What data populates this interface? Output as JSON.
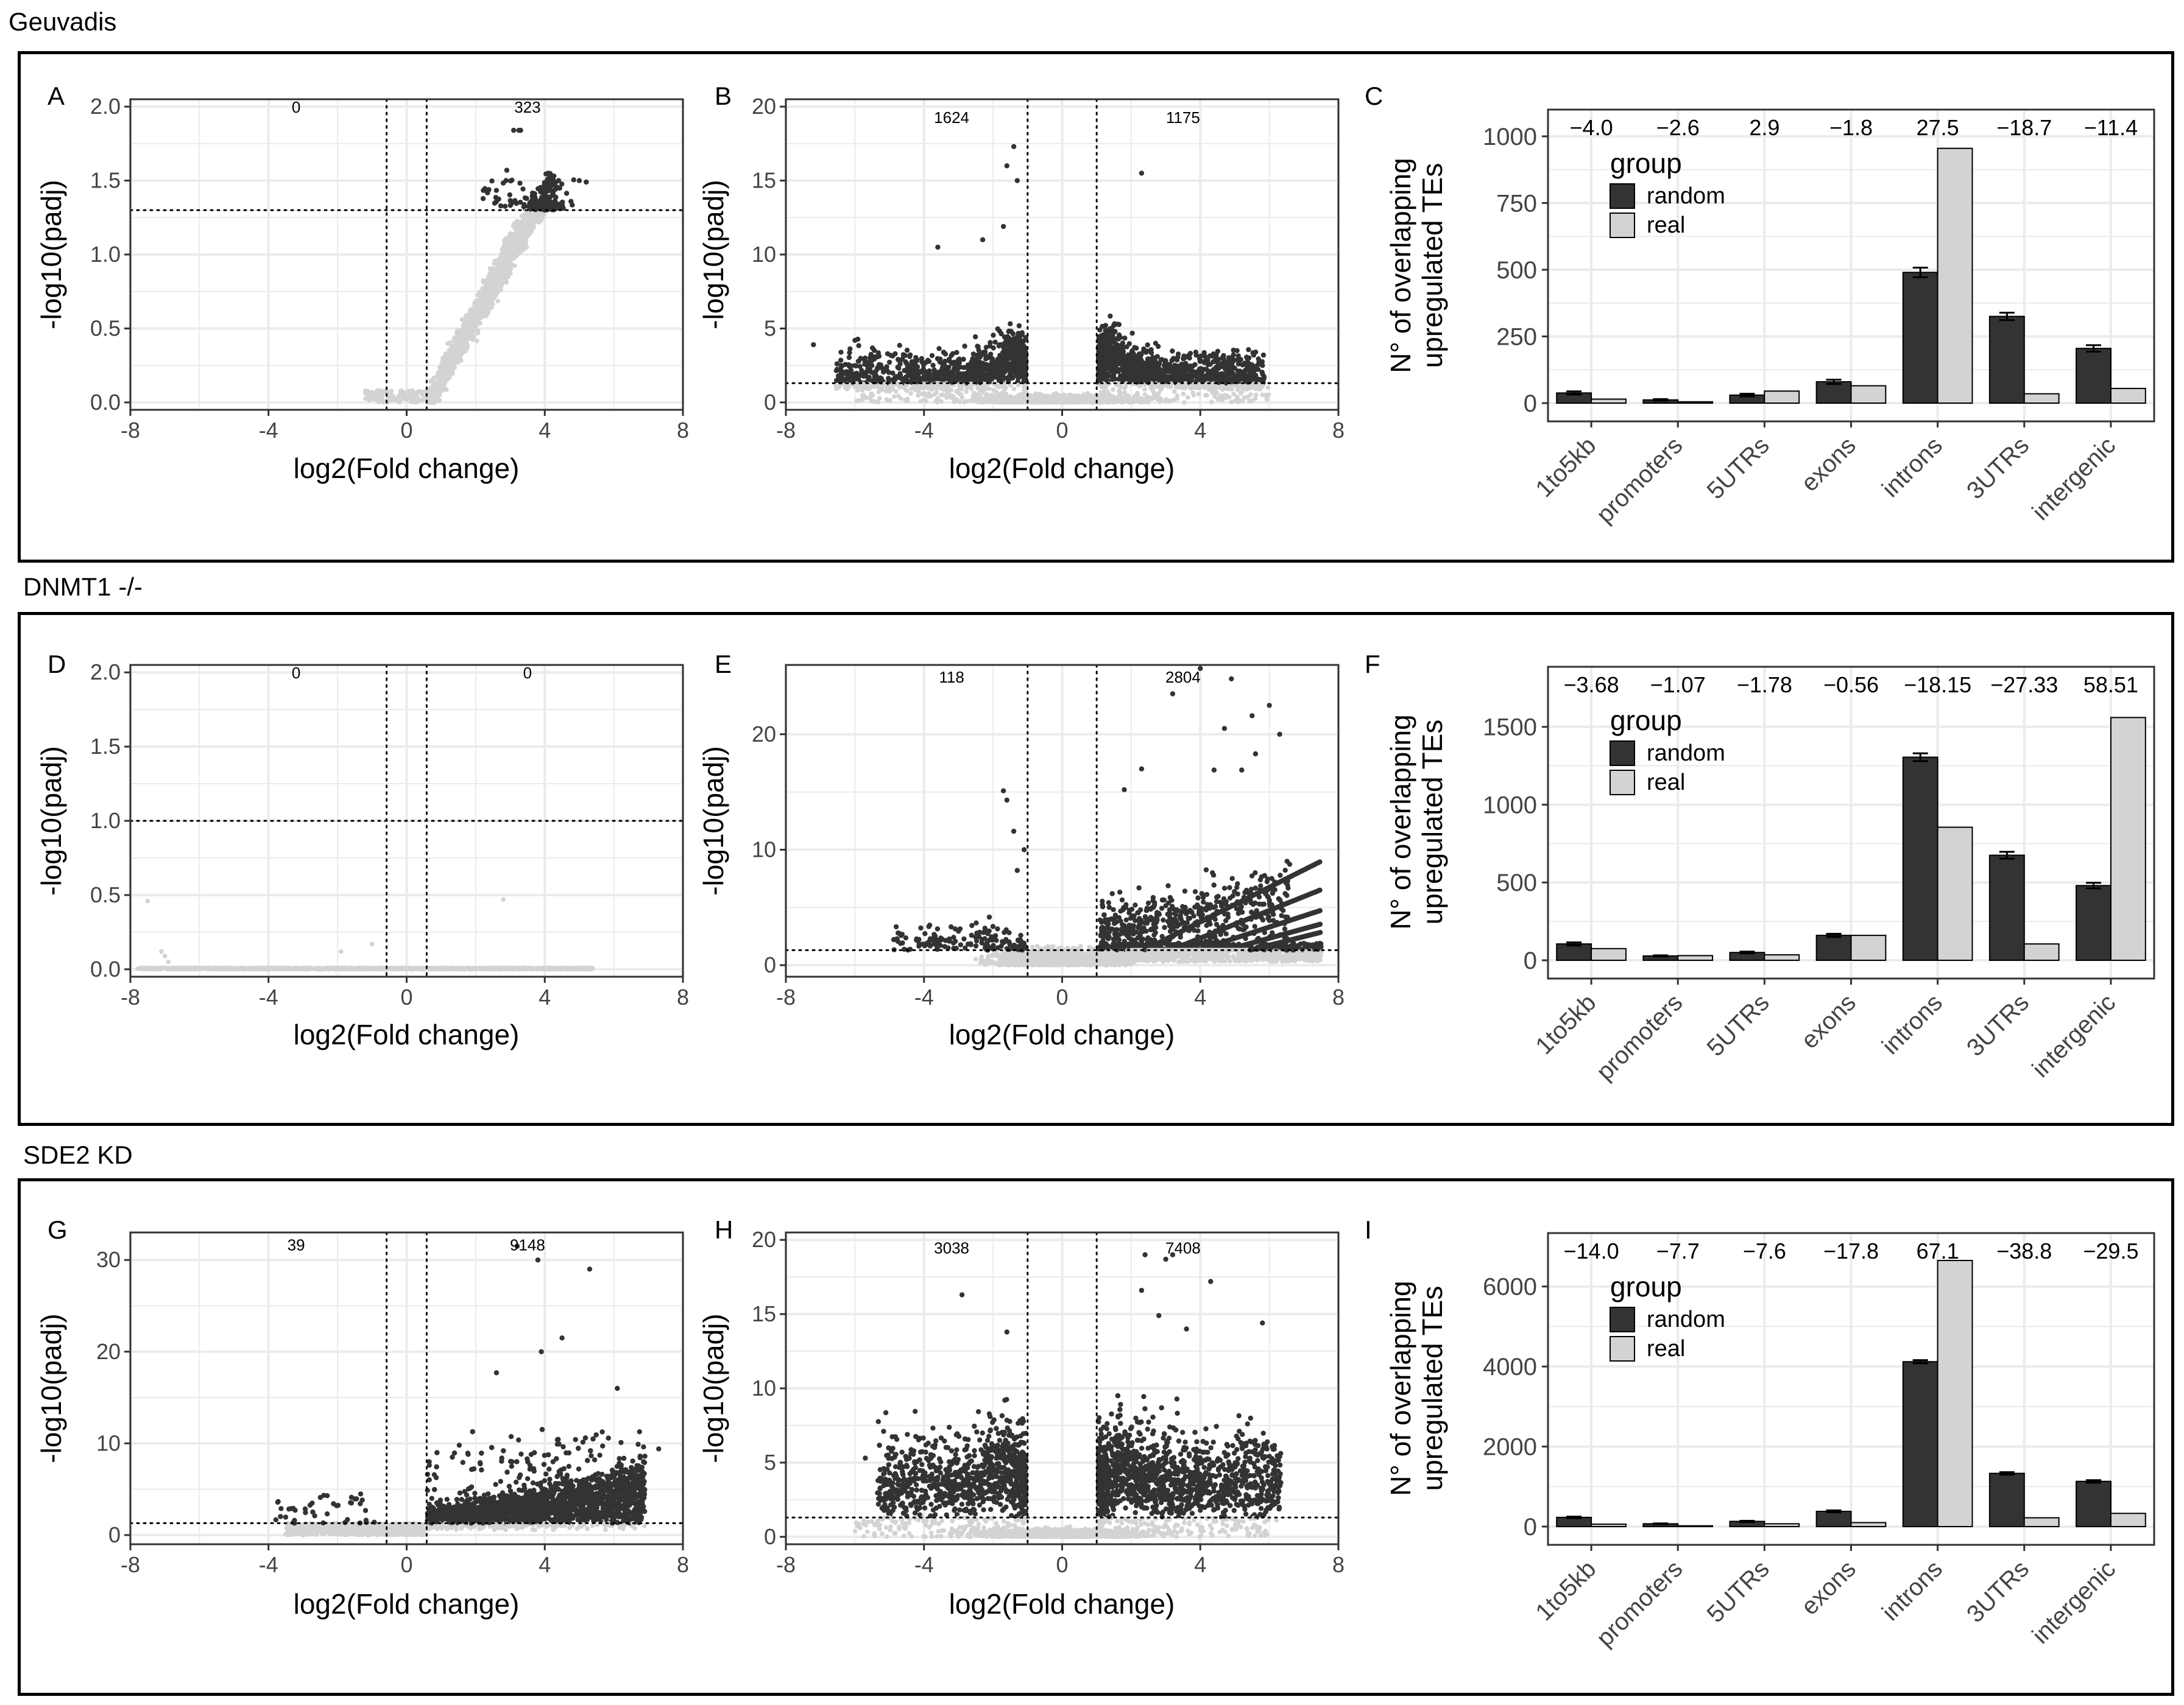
{
  "colors": {
    "dark": "#333333",
    "light": "#d3d3d3",
    "grid": "#ebebeb",
    "frame": "#000000"
  },
  "sections": [
    {
      "title": "Geuvadis"
    },
    {
      "title": "DNMT1 -/-"
    },
    {
      "title": "SDE2 KD"
    }
  ],
  "chart_data": [
    {
      "panel": "A",
      "type": "scatter",
      "xlabel": "log2(Fold change)",
      "ylabel": "-log10(padj)",
      "xlim": [
        -8,
        8
      ],
      "ylim": [
        -0.05,
        2.05
      ],
      "xticks": [
        -8,
        -4,
        0,
        4,
        8
      ],
      "yticks": [
        0,
        0.5,
        1,
        1.5,
        2
      ],
      "ytick_labels": [
        "0.0",
        "0.5",
        "1.0",
        "1.5",
        "2.0"
      ],
      "fc_threshold": 0.58,
      "padj_line": 1.3,
      "count_down": "0",
      "count_up": "323",
      "count_y": 2.0,
      "seed": 11,
      "pattern": "A"
    },
    {
      "panel": "B",
      "type": "scatter",
      "xlabel": "log2(Fold change)",
      "ylabel": "-log10(padj)",
      "xlim": [
        -8,
        8
      ],
      "ylim": [
        -0.5,
        20.5
      ],
      "xticks": [
        -8,
        -4,
        0,
        4,
        8
      ],
      "yticks": [
        0,
        5,
        10,
        15,
        20
      ],
      "ytick_labels": [
        "0",
        "5",
        "10",
        "15",
        "20"
      ],
      "fc_threshold": 1,
      "padj_line": 1.3,
      "count_down": "1624",
      "count_up": "1175",
      "count_y": 19.3,
      "seed": 22,
      "pattern": "B"
    },
    {
      "panel": "C",
      "type": "bar",
      "ylabel_lines": [
        "N° of overlapping",
        "upregulated TEs"
      ],
      "categories": [
        "1to5kb",
        "promoters",
        "5UTRs",
        "exons",
        "introns",
        "3UTRs",
        "intergenic"
      ],
      "series": [
        {
          "name": "random",
          "values": [
            38,
            12,
            30,
            80,
            490,
            325,
            205
          ],
          "errors": [
            6,
            3,
            5,
            8,
            18,
            14,
            12
          ]
        },
        {
          "name": "real",
          "values": [
            15,
            5,
            45,
            65,
            955,
            35,
            55
          ]
        }
      ],
      "yticks": [
        0,
        250,
        500,
        750,
        1000
      ],
      "ymax": 1050,
      "legend_title": "group",
      "annotations": [
        "−4.0",
        "−2.6",
        "2.9",
        "−1.8",
        "27.5",
        "−18.7",
        "−11.4"
      ]
    },
    {
      "panel": "D",
      "type": "scatter",
      "xlabel": "log2(Fold change)",
      "ylabel": "-log10(padj)",
      "xlim": [
        -8,
        8
      ],
      "ylim": [
        -0.05,
        2.05
      ],
      "xticks": [
        -8,
        -4,
        0,
        4,
        8
      ],
      "yticks": [
        0,
        0.5,
        1,
        1.5,
        2
      ],
      "ytick_labels": [
        "0.0",
        "0.5",
        "1.0",
        "1.5",
        "2.0"
      ],
      "fc_threshold": 0.58,
      "padj_line": 1.0,
      "count_down": "0",
      "count_up": "0",
      "count_y": 2.0,
      "seed": 33,
      "pattern": "D"
    },
    {
      "panel": "E",
      "type": "scatter",
      "xlabel": "log2(Fold change)",
      "ylabel": "-log10(padj)",
      "xlim": [
        -8,
        8
      ],
      "ylim": [
        -1,
        26
      ],
      "xticks": [
        -8,
        -4,
        0,
        4,
        8
      ],
      "yticks": [
        0,
        10,
        20
      ],
      "ytick_labels": [
        "0",
        "10",
        "20"
      ],
      "fc_threshold": 1,
      "padj_line": 1.3,
      "count_down": "118",
      "count_up": "2804",
      "count_y": 25.0,
      "seed": 44,
      "pattern": "E"
    },
    {
      "panel": "F",
      "type": "bar",
      "ylabel_lines": [
        "N° of overlapping",
        "upregulated TEs"
      ],
      "categories": [
        "1to5kb",
        "promoters",
        "5UTRs",
        "exons",
        "introns",
        "3UTRs",
        "intergenic"
      ],
      "series": [
        {
          "name": "random",
          "values": [
            105,
            28,
            50,
            160,
            1305,
            675,
            480
          ],
          "errors": [
            10,
            4,
            6,
            10,
            25,
            22,
            18
          ]
        },
        {
          "name": "real",
          "values": [
            75,
            30,
            35,
            160,
            855,
            105,
            1560
          ]
        }
      ],
      "yticks": [
        0,
        500,
        1000,
        1500
      ],
      "ymax": 1800,
      "legend_title": "group",
      "annotations": [
        "−3.68",
        "−1.07",
        "−1.78",
        "−0.56",
        "−18.15",
        "−27.33",
        "58.51"
      ]
    },
    {
      "panel": "G",
      "type": "scatter",
      "xlabel": "log2(Fold change)",
      "ylabel": "-log10(padj)",
      "xlim": [
        -8,
        8
      ],
      "ylim": [
        -1,
        33
      ],
      "xticks": [
        -8,
        -4,
        0,
        4,
        8
      ],
      "yticks": [
        0,
        10,
        20,
        30
      ],
      "ytick_labels": [
        "0",
        "10",
        "20",
        "30"
      ],
      "fc_threshold": 0.58,
      "padj_line": 1.3,
      "count_down": "39",
      "count_up": "9148",
      "count_y": 31.7,
      "seed": 55,
      "pattern": "G"
    },
    {
      "panel": "H",
      "type": "scatter",
      "xlabel": "log2(Fold change)",
      "ylabel": "-log10(padj)",
      "xlim": [
        -8,
        8
      ],
      "ylim": [
        -0.5,
        20.5
      ],
      "xticks": [
        -8,
        -4,
        0,
        4,
        8
      ],
      "yticks": [
        0,
        5,
        10,
        15,
        20
      ],
      "ytick_labels": [
        "0",
        "5",
        "10",
        "15",
        "20"
      ],
      "fc_threshold": 1,
      "padj_line": 1.3,
      "count_down": "3038",
      "count_up": "7408",
      "count_y": 19.5,
      "seed": 66,
      "pattern": "H"
    },
    {
      "panel": "I",
      "type": "bar",
      "ylabel_lines": [
        "N° of overlapping",
        "upregulated TEs"
      ],
      "categories": [
        "1to5kb",
        "promoters",
        "5UTRs",
        "exons",
        "introns",
        "3UTRs",
        "intergenic"
      ],
      "series": [
        {
          "name": "random",
          "values": [
            230,
            70,
            130,
            380,
            4120,
            1330,
            1130
          ],
          "errors": [
            20,
            10,
            15,
            25,
            40,
            30,
            30
          ]
        },
        {
          "name": "real",
          "values": [
            60,
            20,
            70,
            100,
            6650,
            220,
            330
          ]
        }
      ],
      "yticks": [
        0,
        2000,
        4000,
        6000
      ],
      "ymax": 7000,
      "legend_title": "group",
      "annotations": [
        "−14.0",
        "−7.7",
        "−7.6",
        "−17.8",
        "67.1",
        "−38.8",
        "−29.5"
      ]
    }
  ]
}
